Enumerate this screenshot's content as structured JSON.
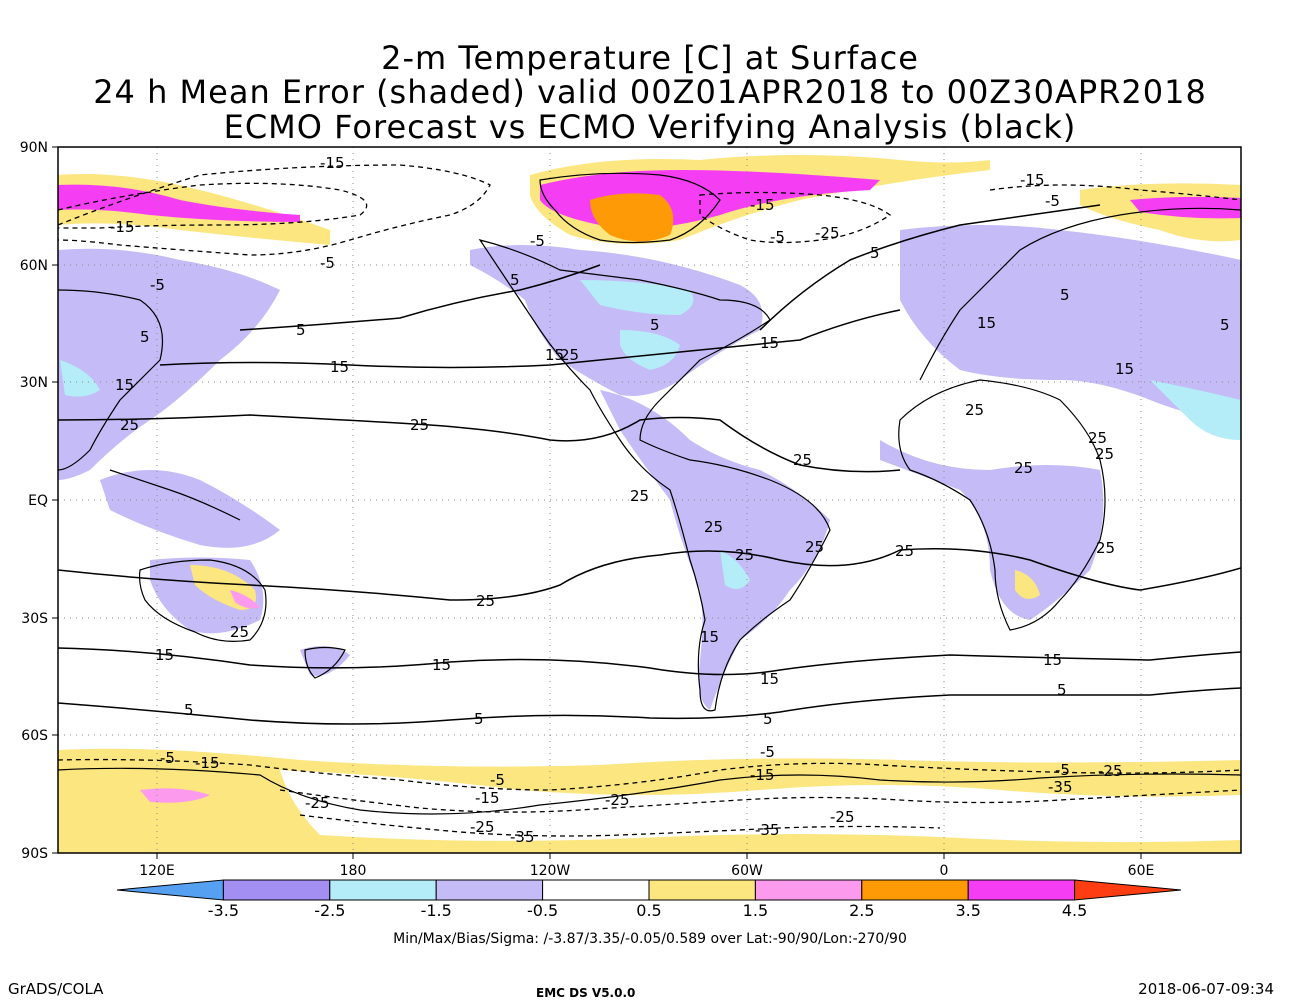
{
  "titles": {
    "line1": "2-m Temperature [C] at Surface",
    "line2": "24 h Mean Error (shaded) valid 00Z01APR2018 to 00Z30APR2018",
    "line3": "ECMO Forecast vs ECMO Verifying Analysis (black)"
  },
  "axes": {
    "lat_labels": [
      "90N",
      "60N",
      "30N",
      "EQ",
      "30S",
      "60S",
      "90S"
    ],
    "lon_labels": [
      "120E",
      "180",
      "120W",
      "60W",
      "0",
      "60E"
    ]
  },
  "colorbar": {
    "labels": [
      "-3.5",
      "-2.5",
      "-1.5",
      "-0.5",
      "0.5",
      "1.5",
      "2.5",
      "3.5",
      "4.5"
    ],
    "colors": [
      "#55a0f0",
      "#a38ef2",
      "#b4ecf7",
      "#c4bbf7",
      "#ffffff",
      "#fce680",
      "#fc9aee",
      "#fd9a06",
      "#f53ef4",
      "#ff3d12"
    ]
  },
  "contour_labels": {
    "near_15": [
      "-15",
      "15",
      "-15"
    ],
    "values": [
      "-35",
      "-25",
      "-15",
      "-5",
      "5",
      "15",
      "25"
    ]
  },
  "stats_line": "Min/Max/Bias/Sigma: /-3.87/3.35/-0.05/0.589 over Lat:-90/90/Lon:-270/90",
  "footer": {
    "left": "GrADS/COLA",
    "center": "EMC DS V5.0.0",
    "right": "2018-06-07-09:34"
  }
}
